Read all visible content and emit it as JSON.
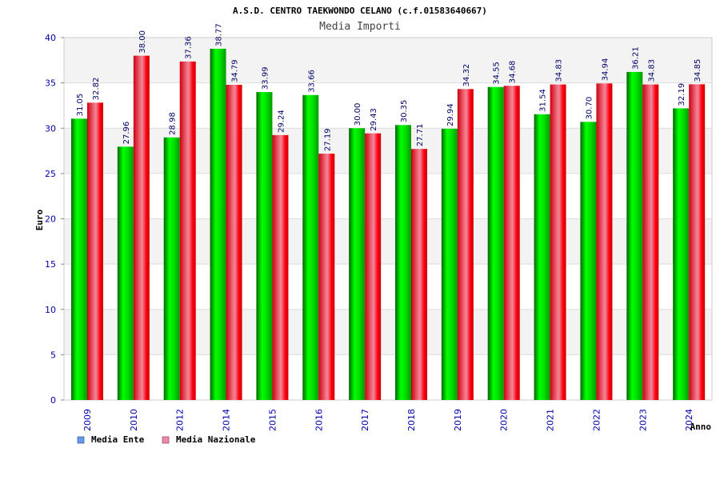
{
  "chart_data": {
    "type": "bar",
    "title": "A.S.D. CENTRO TAEKWONDO CELANO (c.f.01583640667)",
    "subtitle": "Media Importi",
    "xlabel": "Anno",
    "ylabel": "Euro",
    "ylim": [
      0,
      40
    ],
    "yticks": [
      "0",
      "5",
      "10",
      "15",
      "20",
      "25",
      "30",
      "35",
      "40"
    ],
    "categories": [
      "2009",
      "2010",
      "2012",
      "2014",
      "2015",
      "2016",
      "2017",
      "2018",
      "2019",
      "2020",
      "2021",
      "2022",
      "2023",
      "2024"
    ],
    "series": [
      {
        "name": "Media Ente",
        "color": "#00cc00",
        "values": [
          31.05,
          27.96,
          28.98,
          38.77,
          33.99,
          33.66,
          30.0,
          30.35,
          29.94,
          34.55,
          31.54,
          30.7,
          36.21,
          32.19
        ],
        "labels": [
          "31.05",
          "27.96",
          "28.98",
          "38.77",
          "33.99",
          "33.66",
          "30.00",
          "30.35",
          "29.94",
          "34.55",
          "31.54",
          "30.70",
          "36.21",
          "32.19"
        ]
      },
      {
        "name": "Media Nazionale",
        "color": "#ee1122",
        "values": [
          32.82,
          38.0,
          37.36,
          34.79,
          29.24,
          27.19,
          29.43,
          27.71,
          34.32,
          34.68,
          34.83,
          34.94,
          34.83,
          34.85
        ],
        "labels": [
          "32.82",
          "38.00",
          "37.36",
          "34.79",
          "29.24",
          "27.19",
          "29.43",
          "27.71",
          "34.32",
          "34.68",
          "34.83",
          "34.94",
          "34.83",
          "34.85"
        ]
      }
    ],
    "legend": {
      "placement": "bottom-left",
      "items": [
        {
          "label": "Media Ente",
          "swatch_color": "#6699ee"
        },
        {
          "label": "Media Nazionale",
          "swatch_color": "#ee88aa"
        }
      ]
    },
    "grid": true,
    "colors": {
      "axis_text": "#0000aa",
      "value_label": "#000066",
      "band_light": "#f3f3f3",
      "band_white": "#ffffff",
      "gridline": "#dddddd"
    }
  }
}
